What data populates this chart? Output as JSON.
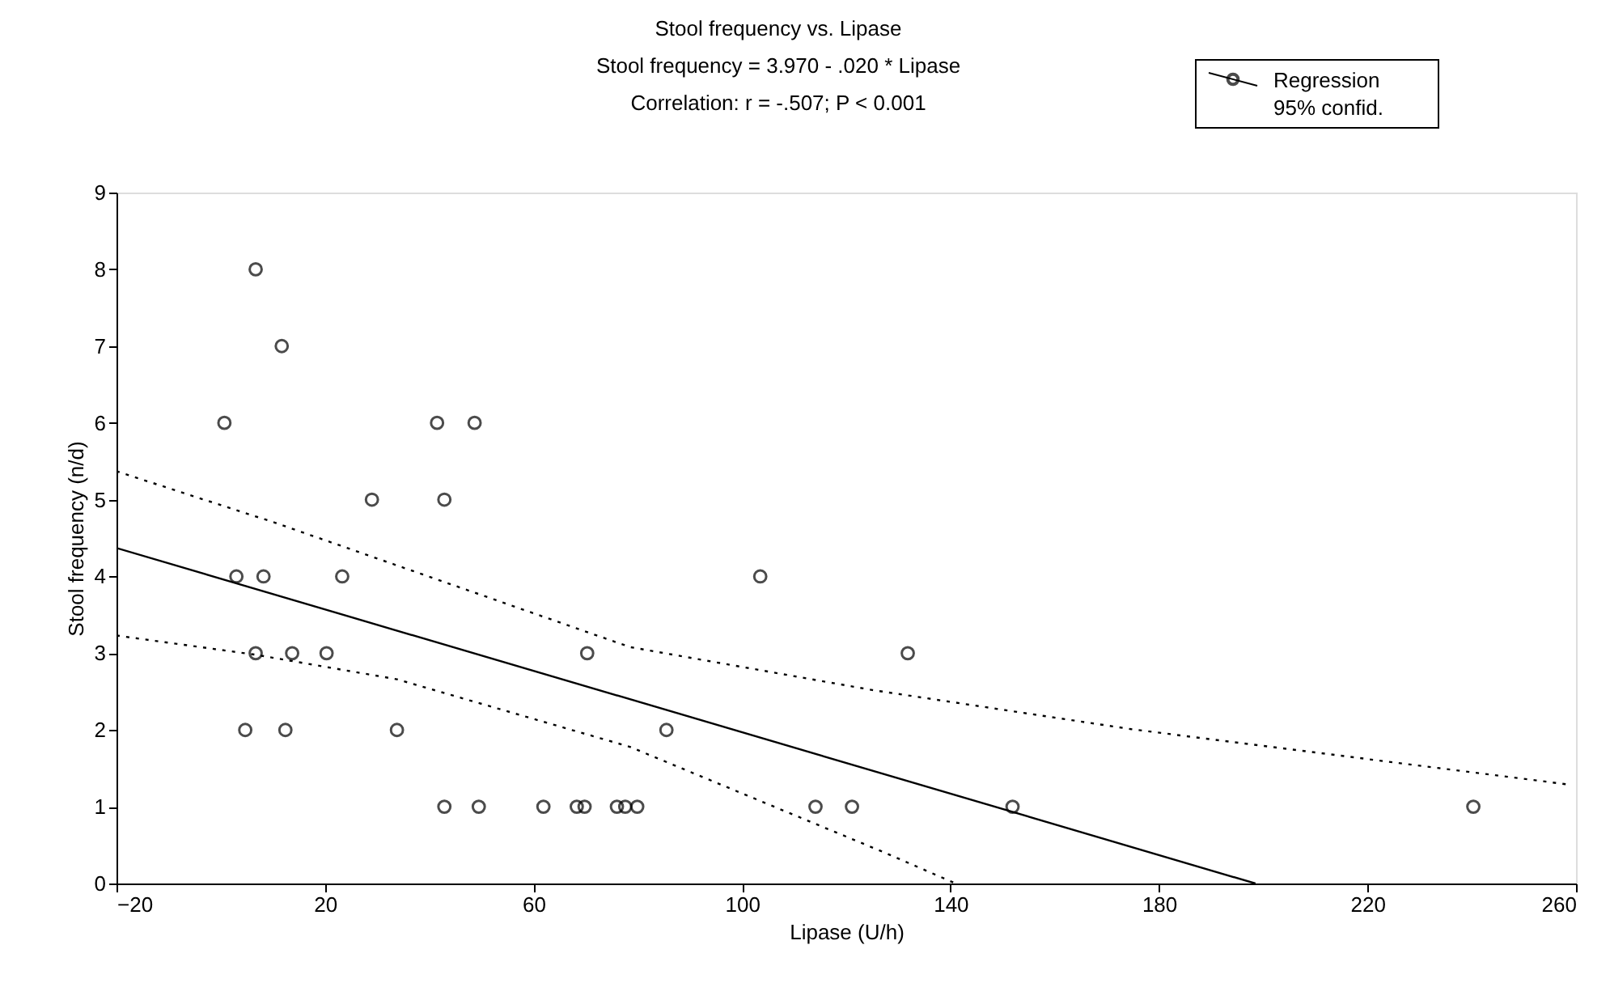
{
  "chart_data": {
    "type": "scatter",
    "title": "Stool frequency vs. Lipase",
    "subtitle": "Stool frequency  = 3.970 - .020 * Lipase",
    "annotations": [
      "Correlation: r = -.507; P < 0.001"
    ],
    "xlabel": "Lipase (U/h)",
    "ylabel": "Stool frequency (n/d)",
    "xlim": [
      -20,
      260
    ],
    "xticks": [
      -20,
      20,
      60,
      100,
      140,
      180,
      220,
      260
    ],
    "ylim": [
      0,
      9
    ],
    "yticks": [
      0,
      1,
      2,
      3,
      4,
      5,
      6,
      7,
      8,
      9
    ],
    "grid": false,
    "legend": "top right",
    "series": [
      {
        "name": "Regression",
        "color": "#000000",
        "marker": "circle",
        "x": [
          6.7,
          11.7,
          0.7,
          41.5,
          48.7,
          29.0,
          42.9,
          3.0,
          8.2,
          23.3,
          6.7,
          13.7,
          20.3,
          70.3,
          4.7,
          12.4,
          33.8,
          42.9,
          49.5,
          61.9,
          68.3,
          69.8,
          76.0,
          77.6,
          79.9,
          103.5,
          131.8,
          85.5,
          114.1,
          121.1,
          151.9,
          240.3
        ],
        "values": [
          8,
          7,
          6,
          6,
          6,
          5,
          5,
          4,
          4,
          4,
          3,
          3,
          3,
          3,
          2,
          2,
          2,
          1,
          1,
          1,
          1,
          1,
          1,
          1,
          1,
          4,
          3,
          2,
          1,
          1,
          1,
          1
        ]
      },
      {
        "type": "line",
        "color": "#000000",
        "line_style": "solid",
        "marker": "none",
        "x": [
          -20,
          198.5
        ],
        "values": [
          4.37,
          0
        ]
      },
      {
        "name": "95% confid.",
        "type": "line",
        "color": "#000000",
        "line_style": "dotted",
        "marker": "none",
        "x": [
          -20,
          10.4,
          78.5,
          125,
          174.7,
          258.5
        ],
        "values": [
          5.37,
          4.7,
          3.08,
          2.52,
          2.01,
          1.29
        ]
      },
      {
        "type": "line",
        "color": "#000000",
        "line_style": "dotted",
        "marker": "none",
        "x": [
          -20,
          6.7,
          33.8,
          78.5,
          127.1,
          141
        ],
        "values": [
          3.23,
          2.98,
          2.66,
          1.78,
          0.41,
          0
        ]
      }
    ]
  }
}
